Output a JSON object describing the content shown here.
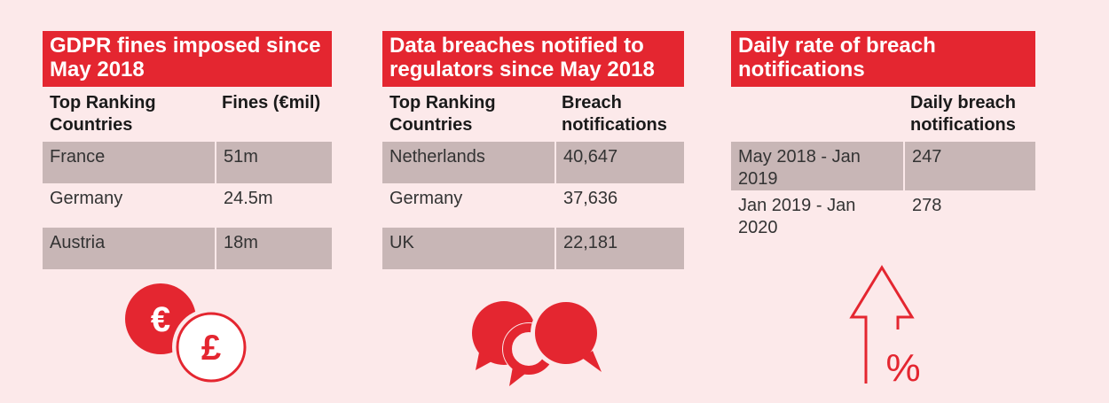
{
  "panels": [
    {
      "title": "GDPR fines imposed since May 2018",
      "headers": [
        "Top Ranking Countries",
        "Fines (€mil)"
      ],
      "rows": [
        [
          "France",
          "51m"
        ],
        [
          "Germany",
          "24.5m"
        ],
        [
          "Austria",
          "18m"
        ]
      ],
      "icon": "currency-coins-icon"
    },
    {
      "title": "Data breaches notified to regulators since May 2018",
      "headers": [
        "Top Ranking Countries",
        "Breach notifications"
      ],
      "rows": [
        [
          "Netherlands",
          "40,647"
        ],
        [
          "Germany",
          "37,636"
        ],
        [
          "UK",
          "22,181"
        ]
      ],
      "icon": "speech-bubbles-icon"
    },
    {
      "title": "Daily rate of breach notifications",
      "headers": [
        "",
        "Daily breach notifications"
      ],
      "rows": [
        [
          "May 2018 - Jan 2019",
          "247"
        ],
        [
          "Jan 2019 - Jan 2020",
          "278"
        ]
      ],
      "icon": "percent-up-arrow-icon"
    }
  ],
  "icon_symbols": {
    "euro": "€",
    "pound": "£",
    "percent": "%"
  },
  "colors": {
    "accent": "#e42630",
    "background": "#fce9ea",
    "shaded_row": "#c8b6b6"
  }
}
